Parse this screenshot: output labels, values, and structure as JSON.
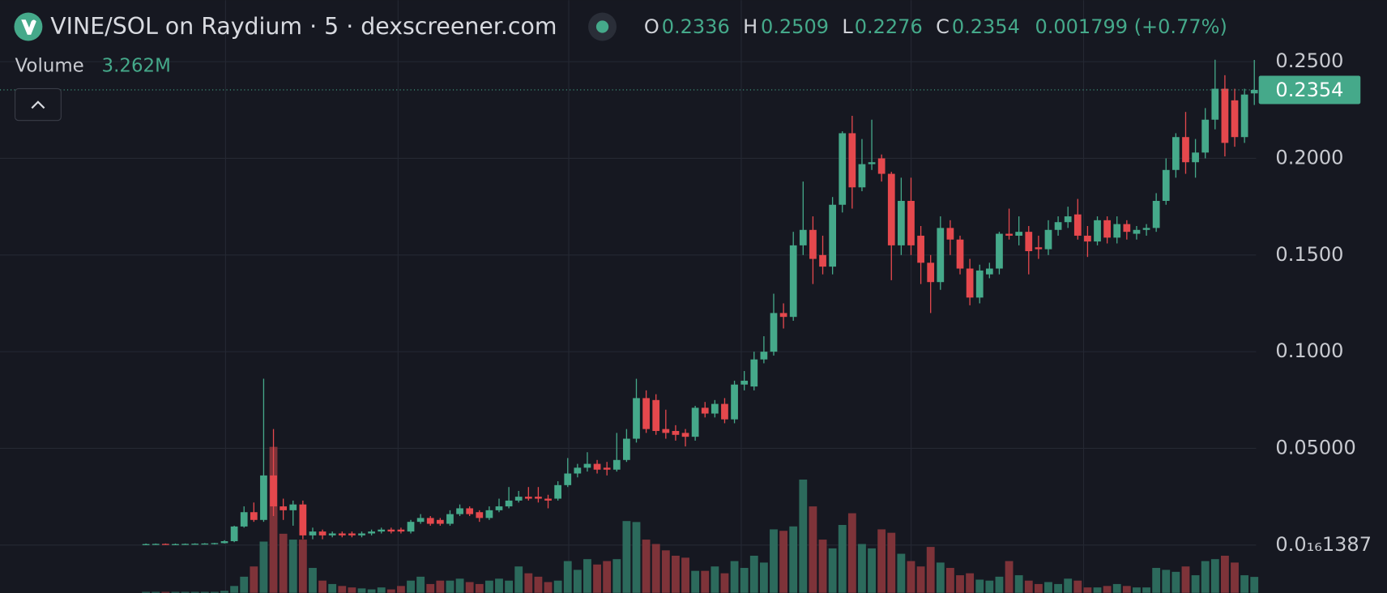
{
  "chart_data": {
    "type": "candlestick",
    "title": "VINE/SOL on Raydium · 5 · dexscreener.com",
    "ohlc_header": [
      {
        "key": "O",
        "value": "0.2336"
      },
      {
        "key": "H",
        "value": "0.2509"
      },
      {
        "key": "L",
        "value": "0.2276"
      },
      {
        "key": "C",
        "value": "0.2354"
      }
    ],
    "change": "0.001799 (+0.77%)",
    "volume_label": "Volume",
    "volume_text": "3.262M",
    "open": [
      0.0005,
      0.0005,
      0.0006,
      0.0005,
      0.0005,
      0.0006,
      0.0007,
      0.0008,
      0.001,
      0.002,
      0.0096,
      0.017,
      0.013,
      0.036,
      0.02,
      0.018,
      0.021,
      0.005,
      0.007,
      0.005,
      0.006,
      0.006,
      0.005,
      0.006,
      0.007,
      0.008,
      0.008,
      0.007,
      0.012,
      0.014,
      0.013,
      0.011,
      0.016,
      0.019,
      0.017,
      0.014,
      0.018,
      0.02,
      0.023,
      0.025,
      0.025,
      0.024,
      0.024,
      0.031,
      0.037,
      0.04,
      0.042,
      0.04,
      0.039,
      0.044,
      0.055,
      0.076,
      0.075,
      0.06,
      0.059,
      0.058,
      0.056,
      0.071,
      0.068,
      0.073,
      0.065,
      0.083,
      0.082,
      0.096,
      0.1,
      0.12,
      0.118,
      0.155,
      0.163,
      0.15,
      0.144,
      0.176,
      0.213,
      0.185,
      0.197,
      0.2,
      0.192,
      0.155,
      0.178,
      0.16,
      0.146,
      0.136,
      0.164,
      0.158,
      0.143,
      0.128,
      0.14,
      0.143,
      0.161,
      0.16,
      0.162,
      0.154,
      0.153,
      0.163,
      0.167,
      0.171,
      0.16,
      0.157,
      0.168,
      0.159,
      0.166,
      0.161,
      0.163,
      0.164,
      0.178,
      0.194,
      0.211,
      0.198,
      0.203,
      0.22,
      0.236,
      0.23,
      0.211,
      0.2336
    ],
    "high": [
      0.0008,
      0.0008,
      0.0008,
      0.0008,
      0.0008,
      0.0009,
      0.001,
      0.0011,
      0.0025,
      0.01,
      0.02,
      0.022,
      0.086,
      0.06,
      0.024,
      0.023,
      0.023,
      0.009,
      0.008,
      0.007,
      0.007,
      0.007,
      0.007,
      0.008,
      0.009,
      0.009,
      0.009,
      0.013,
      0.016,
      0.015,
      0.014,
      0.018,
      0.021,
      0.02,
      0.018,
      0.02,
      0.024,
      0.03,
      0.028,
      0.03,
      0.03,
      0.026,
      0.033,
      0.045,
      0.042,
      0.048,
      0.044,
      0.043,
      0.058,
      0.06,
      0.086,
      0.08,
      0.078,
      0.07,
      0.062,
      0.06,
      0.072,
      0.074,
      0.075,
      0.076,
      0.085,
      0.09,
      0.1,
      0.108,
      0.13,
      0.125,
      0.162,
      0.188,
      0.17,
      0.16,
      0.18,
      0.214,
      0.222,
      0.21,
      0.22,
      0.202,
      0.193,
      0.19,
      0.19,
      0.165,
      0.15,
      0.17,
      0.168,
      0.16,
      0.148,
      0.145,
      0.146,
      0.162,
      0.174,
      0.17,
      0.165,
      0.16,
      0.168,
      0.17,
      0.175,
      0.179,
      0.165,
      0.17,
      0.17,
      0.17,
      0.168,
      0.165,
      0.166,
      0.182,
      0.2,
      0.213,
      0.224,
      0.21,
      0.226,
      0.251,
      0.243,
      0.236,
      0.236,
      0.2509
    ],
    "low": [
      0.0003,
      0.0003,
      0.0003,
      0.0003,
      0.0003,
      0.0003,
      0.0003,
      0.0003,
      0.0008,
      0.0015,
      0.009,
      0.012,
      0.012,
      0.015,
      0.013,
      0.01,
      0.003,
      0.003,
      0.003,
      0.004,
      0.004,
      0.004,
      0.004,
      0.005,
      0.006,
      0.006,
      0.006,
      0.006,
      0.011,
      0.01,
      0.01,
      0.01,
      0.015,
      0.015,
      0.012,
      0.013,
      0.017,
      0.019,
      0.022,
      0.023,
      0.022,
      0.019,
      0.023,
      0.03,
      0.035,
      0.038,
      0.037,
      0.036,
      0.038,
      0.043,
      0.053,
      0.058,
      0.057,
      0.055,
      0.054,
      0.051,
      0.054,
      0.066,
      0.066,
      0.063,
      0.063,
      0.08,
      0.08,
      0.094,
      0.098,
      0.112,
      0.116,
      0.15,
      0.135,
      0.14,
      0.14,
      0.172,
      0.174,
      0.183,
      0.194,
      0.188,
      0.137,
      0.15,
      0.15,
      0.135,
      0.12,
      0.132,
      0.15,
      0.14,
      0.124,
      0.125,
      0.138,
      0.14,
      0.158,
      0.155,
      0.14,
      0.148,
      0.15,
      0.16,
      0.164,
      0.158,
      0.149,
      0.155,
      0.156,
      0.156,
      0.158,
      0.158,
      0.16,
      0.162,
      0.176,
      0.19,
      0.192,
      0.19,
      0.2,
      0.215,
      0.201,
      0.206,
      0.208,
      0.2276
    ],
    "close": [
      0.0005,
      0.0006,
      0.0005,
      0.0005,
      0.0006,
      0.0007,
      0.0008,
      0.001,
      0.002,
      0.0096,
      0.017,
      0.013,
      0.036,
      0.02,
      0.018,
      0.021,
      0.005,
      0.007,
      0.005,
      0.006,
      0.005,
      0.005,
      0.006,
      0.007,
      0.008,
      0.007,
      0.007,
      0.012,
      0.014,
      0.011,
      0.011,
      0.016,
      0.019,
      0.016,
      0.014,
      0.018,
      0.02,
      0.023,
      0.025,
      0.024,
      0.024,
      0.023,
      0.031,
      0.037,
      0.04,
      0.042,
      0.039,
      0.039,
      0.044,
      0.055,
      0.076,
      0.06,
      0.059,
      0.058,
      0.057,
      0.056,
      0.071,
      0.068,
      0.073,
      0.065,
      0.083,
      0.085,
      0.096,
      0.1,
      0.12,
      0.118,
      0.155,
      0.163,
      0.148,
      0.144,
      0.176,
      0.213,
      0.185,
      0.197,
      0.198,
      0.192,
      0.155,
      0.178,
      0.155,
      0.146,
      0.136,
      0.164,
      0.158,
      0.143,
      0.128,
      0.142,
      0.143,
      0.161,
      0.16,
      0.162,
      0.152,
      0.153,
      0.163,
      0.167,
      0.17,
      0.16,
      0.157,
      0.168,
      0.159,
      0.166,
      0.162,
      0.163,
      0.164,
      0.178,
      0.194,
      0.211,
      0.198,
      0.203,
      0.22,
      0.236,
      0.208,
      0.211,
      0.233,
      0.2354
    ],
    "volume": [
      0.2,
      0.2,
      0.2,
      0.2,
      0.2,
      0.2,
      0.2,
      0.2,
      0.4,
      1.4,
      3.3,
      5.4,
      10.5,
      29.9,
      12.1,
      10.9,
      10.9,
      5.1,
      2.5,
      1.8,
      1.4,
      1.1,
      0.9,
      0.7,
      1.1,
      0.7,
      1.4,
      2.5,
      3.3,
      1.8,
      2.5,
      2.5,
      2.9,
      2.2,
      1.8,
      2.5,
      2.9,
      2.5,
      5.4,
      4.0,
      3.3,
      2.2,
      2.5,
      6.5,
      4.7,
      6.9,
      5.8,
      6.5,
      6.9,
      14.7,
      14.5,
      10.9,
      10.0,
      8.7,
      7.6,
      7.2,
      4.5,
      4.5,
      5.4,
      4.0,
      6.5,
      5.1,
      7.6,
      6.2,
      13.0,
      12.7,
      13.6,
      23.2,
      17.7,
      10.9,
      9.1,
      13.9,
      16.3,
      10.0,
      9.1,
      13.0,
      12.3,
      8.0,
      6.5,
      5.4,
      9.4,
      6.2,
      5.1,
      3.6,
      4.0,
      2.7,
      2.5,
      3.3,
      6.5,
      3.6,
      2.5,
      1.8,
      2.2,
      1.8,
      2.9,
      2.5,
      1.1,
      1.1,
      1.4,
      1.8,
      1.4,
      1.1,
      1.1,
      5.1,
      4.7,
      4.3,
      5.4,
      3.6,
      6.5,
      6.9,
      7.6,
      6.2,
      3.6,
      3.262
    ],
    "volume_lim": [
      0,
      121.4
    ],
    "ylim": [
      -0.0247,
      0.2818
    ],
    "yticks": [
      {
        "value": 0.25,
        "label": "0.2500"
      },
      {
        "value": 0.2,
        "label": "0.2000"
      },
      {
        "value": 0.15,
        "label": "0.1500"
      },
      {
        "value": 0.1,
        "label": "0.1000"
      },
      {
        "value": 0.05,
        "label": "0.05000"
      },
      {
        "value": 1.387e-17,
        "label": "0.0₁₆1387"
      }
    ],
    "grid": true,
    "last_price": 0.2354,
    "up_color": "#45a98a",
    "down_color": "#e5484d",
    "volume_up_color": "#2c6a5c",
    "volume_down_color": "#7e3339"
  }
}
